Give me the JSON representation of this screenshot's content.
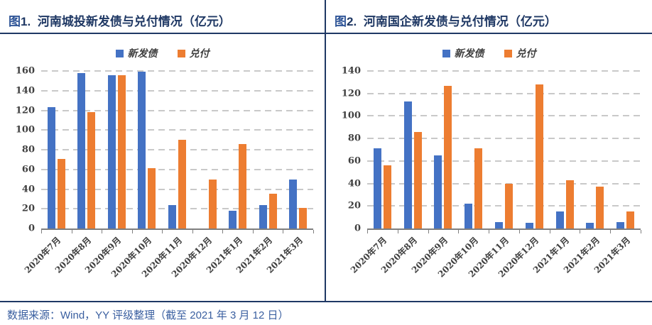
{
  "page": {
    "footer": "数据来源：Wind，YY 评级整理（截至 2021 年 3 月 12 日）"
  },
  "colors": {
    "accent_navy": "#1F3864",
    "fig_label_blue": "#2F5597",
    "series_new_issue_blue": "#4472C4",
    "series_redemption_orange": "#ED7D31",
    "gridline_gray": "#C9C9C9",
    "axis_gray": "#7F7F7F",
    "footer_blue": "#3A5FA0"
  },
  "chart_data": [
    {
      "type": "bar",
      "fig_label": "图",
      "fig_num": "1.",
      "title": "河南城投新发债与兑付情况（亿元）",
      "legend_position": "top",
      "grid": "dashed-horizontal",
      "ylim": [
        0,
        160
      ],
      "ystep": 20,
      "categories": [
        "2020年7月",
        "2020年8月",
        "2020年9月",
        "2020年10月",
        "2020年11月",
        "2020年12月",
        "2021年1月",
        "2021年2月",
        "2021年3月"
      ],
      "series": [
        {
          "name": "新发债",
          "key": "new-issue",
          "color": "#4472C4",
          "values": [
            123,
            158,
            156,
            159,
            24,
            0,
            18,
            24,
            50
          ]
        },
        {
          "name": "兑付",
          "key": "redemption",
          "color": "#ED7D31",
          "values": [
            71,
            118,
            156,
            61,
            90,
            50,
            86,
            35,
            21
          ]
        }
      ]
    },
    {
      "type": "bar",
      "fig_label": "图",
      "fig_num": "2.",
      "title": "河南国企新发债与兑付情况（亿元）",
      "legend_position": "top",
      "grid": "dashed-horizontal",
      "ylim": [
        0,
        140
      ],
      "ystep": 20,
      "categories": [
        "2020年7月",
        "2020年8月",
        "2020年9月",
        "2020年10月",
        "2020年11月",
        "2020年12月",
        "2021年1月",
        "2021年2月",
        "2021年3月"
      ],
      "series": [
        {
          "name": "新发债",
          "key": "new-issue",
          "color": "#4472C4",
          "values": [
            71,
            113,
            65,
            22,
            6,
            5,
            15,
            5,
            6
          ]
        },
        {
          "name": "兑付",
          "key": "redemption",
          "color": "#ED7D31",
          "values": [
            56,
            86,
            127,
            71,
            40,
            128,
            43,
            37,
            15
          ]
        }
      ]
    }
  ]
}
